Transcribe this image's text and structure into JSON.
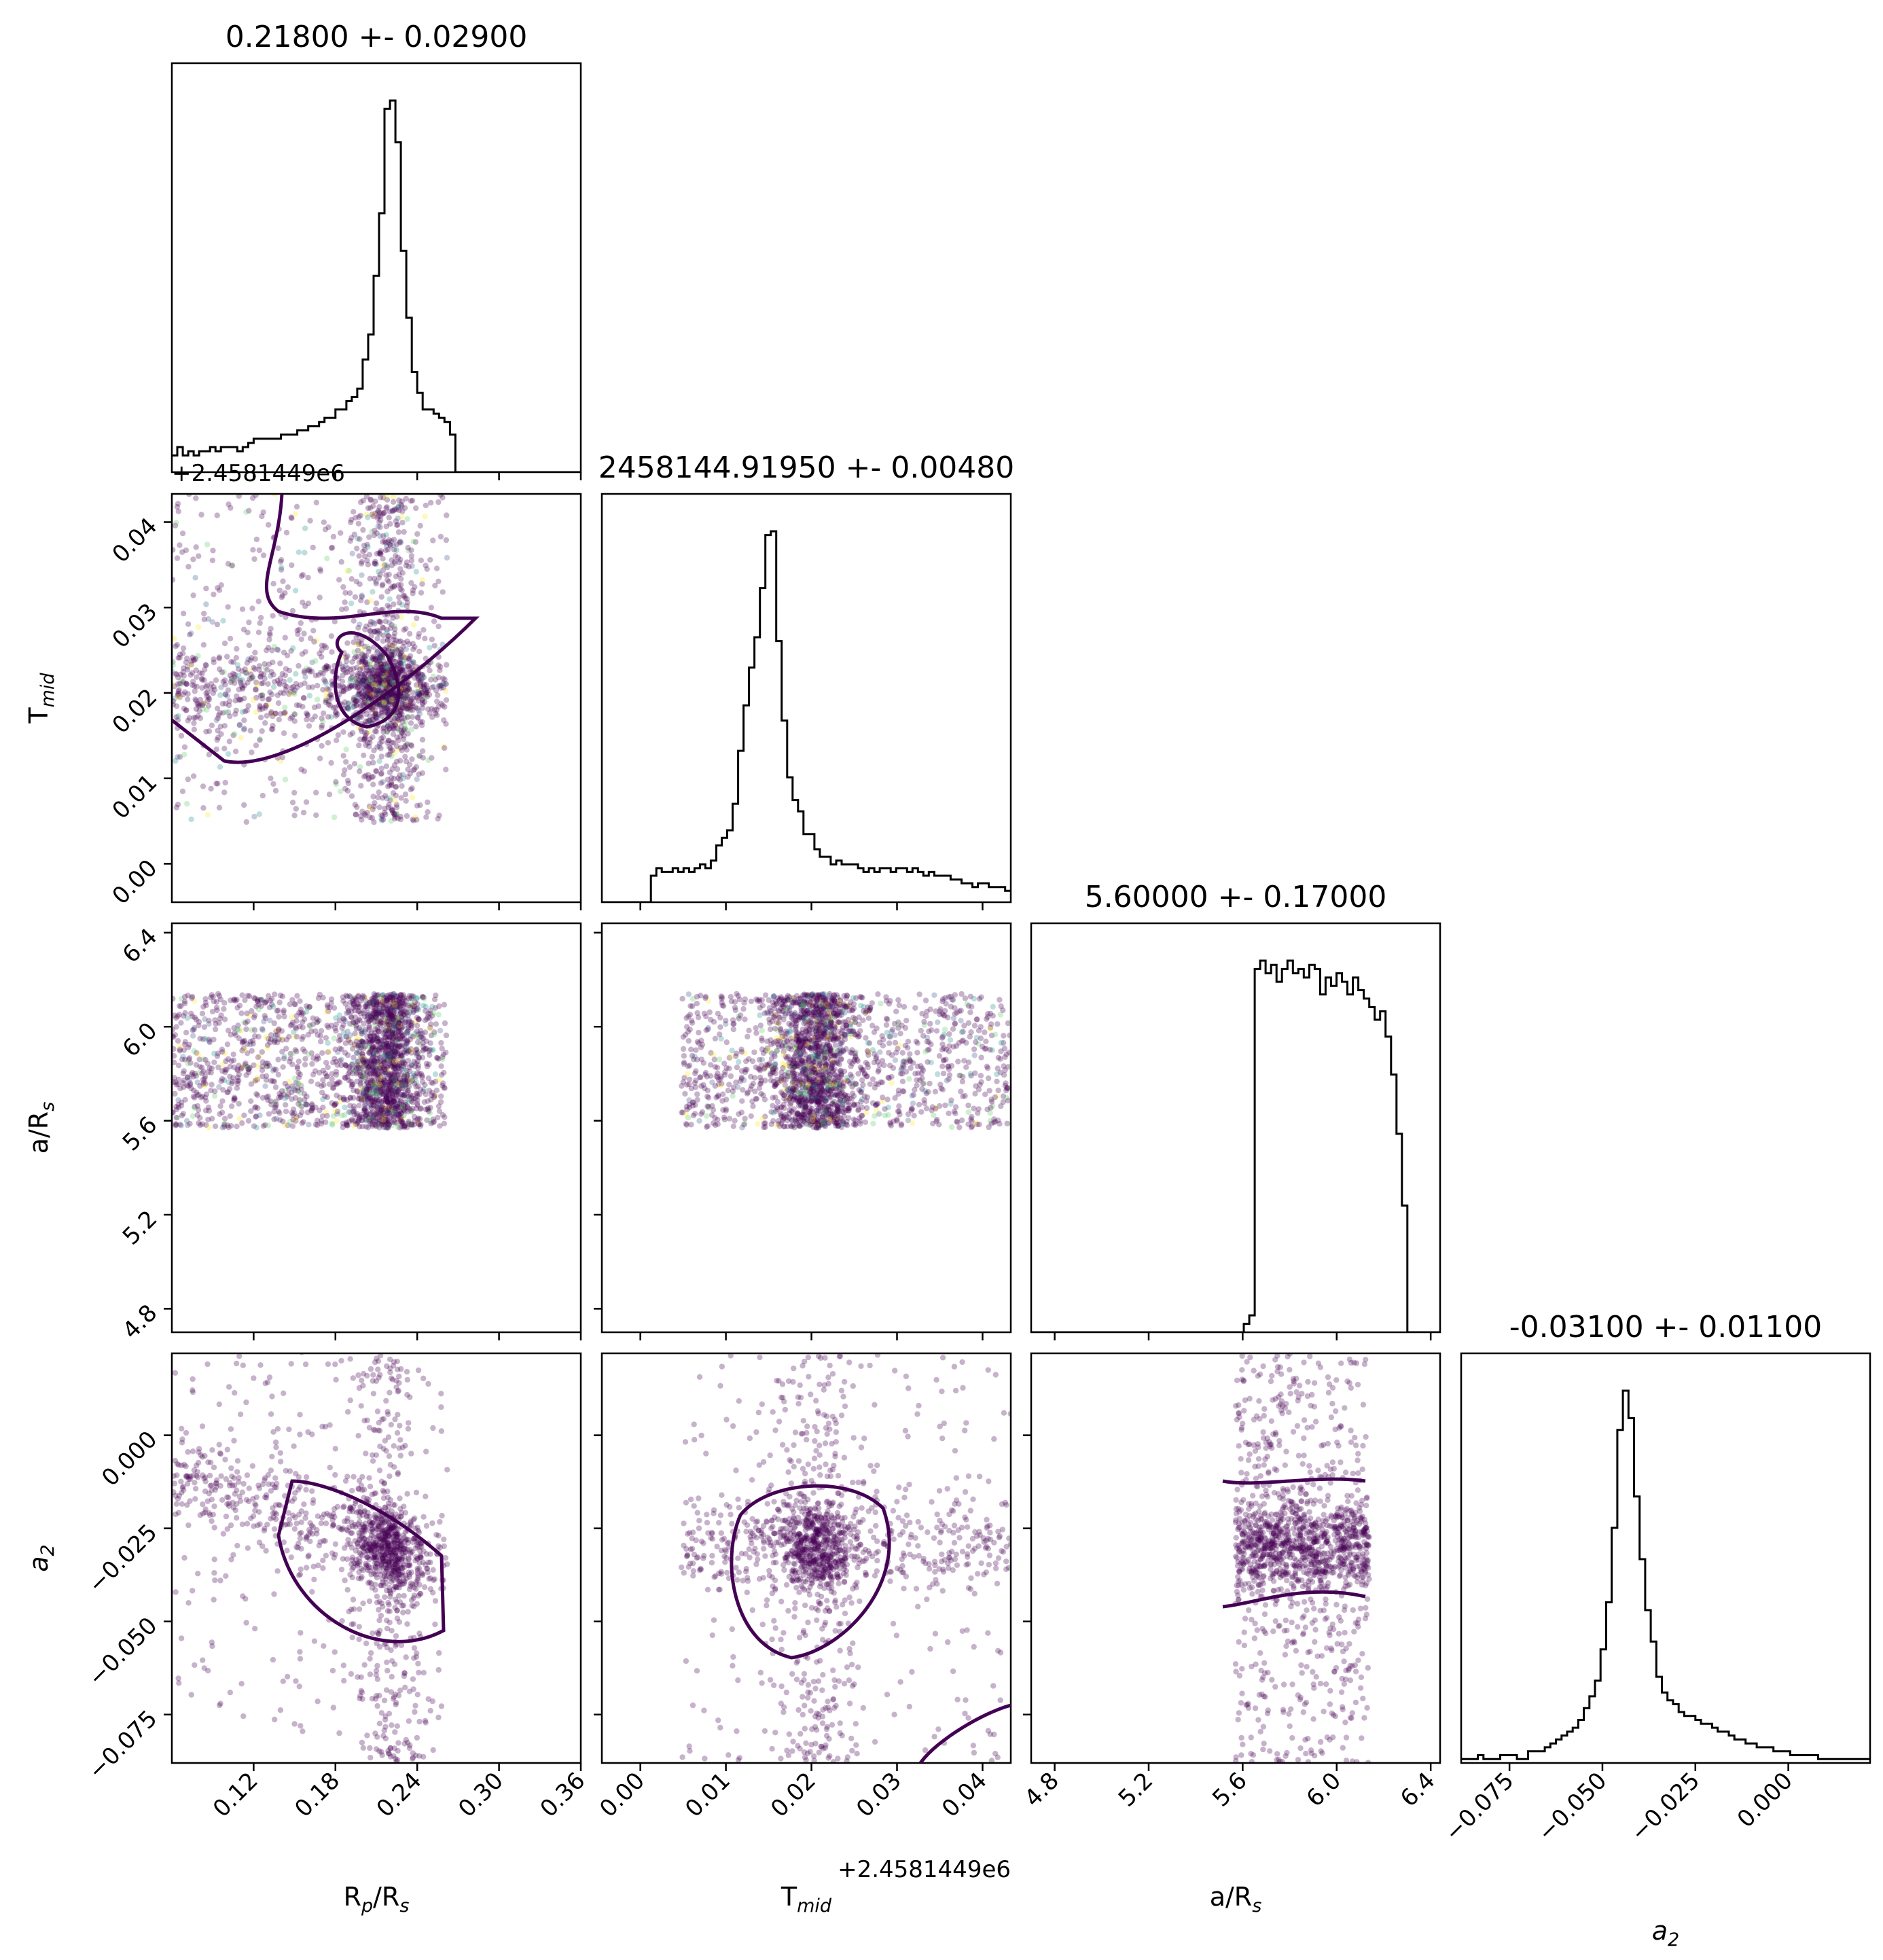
{
  "chart_data": [
    {
      "type": "histogram",
      "panel": "diag-rp",
      "title": "0.21800 +- 0.02900",
      "xlim": [
        0.06,
        0.36
      ],
      "bin_start": 0.06,
      "bin_width": 0.004,
      "values": [
        4,
        6,
        4,
        5,
        4,
        5,
        5,
        6,
        5,
        6,
        6,
        6,
        5,
        6,
        7,
        8,
        8,
        8,
        8,
        8,
        9,
        9,
        9,
        10,
        10,
        11,
        11,
        12,
        13,
        13,
        15,
        15,
        17,
        18,
        20,
        27,
        33,
        47,
        62,
        87,
        89,
        79,
        53,
        37,
        24,
        19,
        15,
        15,
        14,
        13,
        12,
        9,
        0,
        0,
        0,
        0,
        0,
        0,
        0,
        0,
        0,
        0,
        0,
        0,
        0,
        0,
        0,
        0,
        0,
        0,
        0,
        0,
        0,
        0,
        0
      ],
      "color": "#000000"
    },
    {
      "type": "histogram",
      "panel": "diag-tmid",
      "title": "2458144.91950 +- 0.00480",
      "xlim": [
        -0.0045,
        0.0433
      ],
      "bin_start": -0.0045,
      "bin_width": 0.000637,
      "values": [
        0,
        0,
        0,
        0,
        0,
        0,
        0,
        0,
        0,
        7,
        9,
        8,
        8,
        9,
        8,
        9,
        8,
        9,
        10,
        9,
        11,
        15,
        17,
        19,
        26,
        40,
        52,
        62,
        70,
        83,
        97,
        98,
        69,
        48,
        33,
        27,
        24,
        18,
        18,
        14,
        12,
        12,
        10,
        11,
        10,
        10,
        10,
        9,
        8,
        9,
        8,
        9,
        9,
        8,
        9,
        9,
        8,
        9,
        8,
        7,
        8,
        7,
        7,
        7,
        6,
        6,
        5,
        5,
        4,
        5,
        5,
        4,
        4,
        4,
        3,
        3
      ]
    },
    {
      "type": "histogram",
      "panel": "diag-ars",
      "title": "5.60000 +- 0.17000",
      "xlim": [
        4.7,
        6.44
      ],
      "bin_start": 4.7,
      "bin_width": 0.0232,
      "values": [
        0,
        0,
        0,
        0,
        0,
        0,
        0,
        0,
        0,
        0,
        0,
        0,
        0,
        0,
        0,
        0,
        0,
        0,
        0,
        0,
        0,
        0,
        0,
        0,
        0,
        0,
        0,
        0,
        0,
        0,
        0,
        0,
        0,
        0,
        0,
        0,
        0,
        0,
        0,
        2,
        4,
        86,
        88,
        85,
        87,
        83,
        86,
        88,
        85,
        86,
        84,
        87,
        86,
        80,
        84,
        82,
        85,
        83,
        80,
        84,
        81,
        79,
        77,
        74,
        76,
        70,
        61,
        47,
        30,
        0,
        0,
        0,
        0,
        0,
        0
      ]
    },
    {
      "type": "histogram",
      "panel": "diag-a2",
      "title": "-0.03100 +- 0.01100",
      "xlim": [
        -0.088,
        0.022
      ],
      "bin_start": -0.088,
      "bin_width": 0.0015,
      "values": [
        1,
        1,
        1,
        2,
        1,
        1,
        1,
        2,
        2,
        2,
        1,
        1,
        3,
        3,
        3,
        4,
        5,
        6,
        7,
        8,
        9,
        11,
        14,
        17,
        21,
        29,
        41,
        60,
        85,
        95,
        88,
        68,
        52,
        39,
        31,
        22,
        18,
        16,
        15,
        13,
        12,
        12,
        11,
        10,
        10,
        9,
        8,
        8,
        7,
        6,
        6,
        5,
        5,
        4,
        4,
        4,
        3,
        3,
        3,
        2,
        2,
        2,
        2,
        2,
        1,
        1,
        1,
        1,
        1,
        1,
        1,
        1,
        1,
        1
      ]
    },
    {
      "type": "scatter",
      "panels": [
        "tmid-vs-rp",
        "ars-vs-rp",
        "ars-vs-tmid",
        "a2-vs-rp",
        "a2-vs-tmid",
        "a2-vs-ars"
      ],
      "color": "#440154",
      "colors_secondary": [
        "#fde725",
        "#21918c",
        "#3b528b",
        "#5ec962"
      ]
    }
  ],
  "axes": {
    "rp": {
      "label_main": "R",
      "label_sub1": "p",
      "label_mid": "/R",
      "label_sub2": "s",
      "ticks": [
        "0.12",
        "0.18",
        "0.24",
        "0.30",
        "0.36"
      ],
      "tick_values": [
        0.12,
        0.18,
        0.24,
        0.3,
        0.36
      ]
    },
    "tmid": {
      "label_main": "T",
      "label_sub1": "mid",
      "ticks": [
        "0.00",
        "0.01",
        "0.02",
        "0.03",
        "0.04"
      ],
      "tick_values": [
        0.0,
        0.01,
        0.02,
        0.03,
        0.04
      ],
      "offset": "+2.4581449e6"
    },
    "ars": {
      "label_main": "a/R",
      "label_sub1": "s",
      "ticks": [
        "4.8",
        "5.2",
        "5.6",
        "6.0",
        "6.4"
      ],
      "tick_values": [
        4.8,
        5.2,
        5.6,
        6.0,
        6.4
      ]
    },
    "a2": {
      "label_main": "a",
      "label_sub1": "2",
      "ticks": [
        "−0.075",
        "−0.050",
        "−0.025",
        "0.000"
      ],
      "tick_values": [
        -0.075,
        -0.05,
        -0.025,
        0.0
      ]
    }
  }
}
